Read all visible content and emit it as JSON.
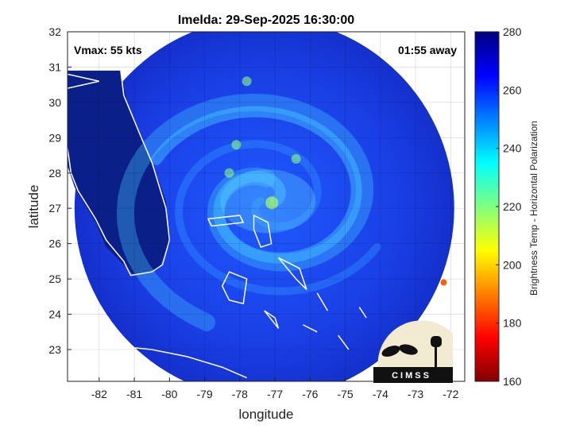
{
  "chart_data": {
    "type": "heatmap",
    "title": "Imelda: 29-Sep-2025 16:30:00",
    "xlabel": "longitude",
    "ylabel": "latitude",
    "xlim": [
      -82.9,
      -71.6
    ],
    "ylim": [
      22.1,
      32.0
    ],
    "xticks": [
      -82,
      -81,
      -80,
      -79,
      -78,
      -77,
      -76,
      -75,
      -74,
      -73,
      -72
    ],
    "yticks": [
      23,
      24,
      25,
      26,
      27,
      28,
      29,
      30,
      31,
      32
    ],
    "grid": true,
    "annotations": {
      "vmax": "Vmax: 55 kts",
      "time_offset": "01:55 away"
    },
    "colorbar": {
      "label": "Brightness Temp - Horizontal Polarization",
      "range": [
        160,
        280
      ],
      "ticks": [
        160,
        180,
        200,
        220,
        240,
        260,
        280
      ],
      "colormap": "jet"
    },
    "swath": {
      "center_lon": -77.3,
      "center_lat": 27.0,
      "radius_deg": 5.4
    },
    "storm_center": {
      "lon": -77.2,
      "lat": 27.2
    },
    "colors": {
      "background_warm": "#1b2cc6",
      "land": "#0b1f8a",
      "rainband": "#4fc3ff",
      "coastline": "#ffffff"
    },
    "logo": {
      "text": "CIMSS"
    }
  }
}
